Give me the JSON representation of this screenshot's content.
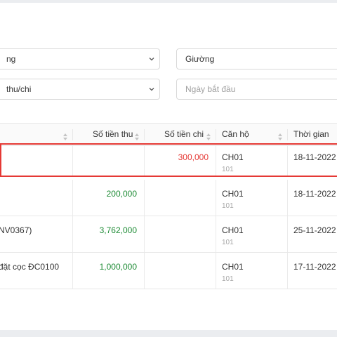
{
  "filters": {
    "select1": "ng",
    "select2": "Giường",
    "select3": "thu/chi",
    "date_placeholder": "Ngày bắt đầu"
  },
  "table": {
    "columns": [
      "Số tiền thu",
      "Số tiền chi",
      "Căn hộ",
      "Thời gian"
    ],
    "rows": [
      {
        "desc": "",
        "in": "",
        "out": "300,000",
        "unit": "CH01",
        "unit_sub": "101",
        "date": "18-11-2022"
      },
      {
        "desc": "",
        "in": "200,000",
        "out": "",
        "unit": "CH01",
        "unit_sub": "101",
        "date": "18-11-2022"
      },
      {
        "desc": "NV0367)",
        "in": "3,762,000",
        "out": "",
        "unit": "CH01",
        "unit_sub": "101",
        "date": "25-11-2022"
      },
      {
        "desc": "đặt cọc ĐC0100",
        "in": "1,000,000",
        "out": "",
        "unit": "CH01",
        "unit_sub": "101",
        "date": "17-11-2022"
      }
    ]
  },
  "colors": {
    "income": "#1e8b35",
    "expense": "#e53935",
    "highlight": "#e53935"
  }
}
